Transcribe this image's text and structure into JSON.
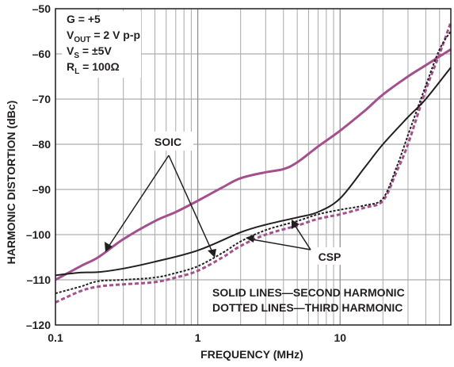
{
  "chart_data": {
    "type": "line",
    "title": "",
    "xlabel": "FREQUENCY (MHz)",
    "ylabel": "HARMONIC DISTORTION (dBc)",
    "xscale": "log",
    "xlim": [
      0.1,
      60
    ],
    "ylim": [
      -120,
      -50
    ],
    "grid": true,
    "x_ticks": [
      0.1,
      1,
      10
    ],
    "x_tick_labels": [
      "0.1",
      "1",
      "10"
    ],
    "y_ticks": [
      -120,
      -110,
      -100,
      -90,
      -80,
      -70,
      -60,
      -50
    ],
    "y_tick_labels": [
      "–120",
      "–110",
      "–100",
      "–90",
      "–80",
      "–70",
      "–60",
      "–50"
    ],
    "conditions": [
      {
        "main": "G = +5",
        "sub": "",
        "rest": ""
      },
      {
        "main": "V",
        "sub": "OUT",
        "rest": " = 2 V p-p"
      },
      {
        "main": "V",
        "sub": "S",
        "rest": " = ±5V"
      },
      {
        "main": "R",
        "sub": "L",
        "rest": " = 100Ω"
      }
    ],
    "legend_notes": [
      "SOLID LINES—SECOND HARMONIC",
      "DOTTED LINES—THIRD HARMONIC"
    ],
    "annotations": [
      {
        "text": "SOIC"
      },
      {
        "text": "CSP"
      }
    ],
    "series": [
      {
        "package": "SOIC",
        "harmonic": "second",
        "style": "solid",
        "color": "#a3508c",
        "points": [
          [
            0.1,
            -110
          ],
          [
            0.15,
            -107
          ],
          [
            0.2,
            -105
          ],
          [
            0.3,
            -101
          ],
          [
            0.5,
            -97
          ],
          [
            0.7,
            -95
          ],
          [
            1,
            -92.5
          ],
          [
            1.5,
            -89.5
          ],
          [
            2,
            -87.5
          ],
          [
            3,
            -86.2
          ],
          [
            4,
            -85.5
          ],
          [
            5,
            -84
          ],
          [
            7,
            -80.5
          ],
          [
            10,
            -77
          ],
          [
            15,
            -72.5
          ],
          [
            20,
            -69
          ],
          [
            30,
            -65
          ],
          [
            40,
            -62.5
          ],
          [
            60,
            -59
          ]
        ]
      },
      {
        "package": "SOIC",
        "harmonic": "third",
        "style": "dashed",
        "color": "#a3508c",
        "points": [
          [
            0.1,
            -115
          ],
          [
            0.15,
            -112.5
          ],
          [
            0.2,
            -111.5
          ],
          [
            0.3,
            -111
          ],
          [
            0.5,
            -110.5
          ],
          [
            0.7,
            -109.5
          ],
          [
            1,
            -108
          ],
          [
            1.5,
            -105
          ],
          [
            2,
            -102.5
          ],
          [
            3,
            -100
          ],
          [
            5,
            -98
          ],
          [
            7,
            -96.5
          ],
          [
            10,
            -95.5
          ],
          [
            15,
            -94
          ],
          [
            20,
            -92.5
          ],
          [
            25,
            -86
          ],
          [
            30,
            -80
          ],
          [
            40,
            -68
          ],
          [
            50,
            -60
          ],
          [
            60,
            -53
          ]
        ]
      },
      {
        "package": "CSP",
        "harmonic": "second",
        "style": "solid",
        "color": "#231f20",
        "points": [
          [
            0.1,
            -109
          ],
          [
            0.15,
            -108.4
          ],
          [
            0.2,
            -108.3
          ],
          [
            0.3,
            -107.5
          ],
          [
            0.5,
            -106
          ],
          [
            1,
            -103.5
          ],
          [
            2,
            -99.5
          ],
          [
            3,
            -97.8
          ],
          [
            5,
            -96.2
          ],
          [
            7,
            -95
          ],
          [
            10,
            -92
          ],
          [
            15,
            -85
          ],
          [
            20,
            -80
          ],
          [
            30,
            -74
          ],
          [
            40,
            -70
          ],
          [
            60,
            -63
          ]
        ]
      },
      {
        "package": "CSP",
        "harmonic": "third",
        "style": "dashed",
        "color": "#231f20",
        "points": [
          [
            0.1,
            -113
          ],
          [
            0.15,
            -111.5
          ],
          [
            0.2,
            -110.3
          ],
          [
            0.3,
            -110
          ],
          [
            0.5,
            -109.5
          ],
          [
            0.7,
            -108.5
          ],
          [
            1,
            -107
          ],
          [
            1.5,
            -104
          ],
          [
            2,
            -101.5
          ],
          [
            3,
            -99
          ],
          [
            5,
            -97
          ],
          [
            7,
            -95.5
          ],
          [
            10,
            -94.5
          ],
          [
            15,
            -93.5
          ],
          [
            20,
            -92
          ],
          [
            25,
            -85
          ],
          [
            30,
            -78
          ],
          [
            40,
            -67
          ],
          [
            50,
            -59
          ],
          [
            60,
            -55
          ]
        ]
      }
    ]
  }
}
